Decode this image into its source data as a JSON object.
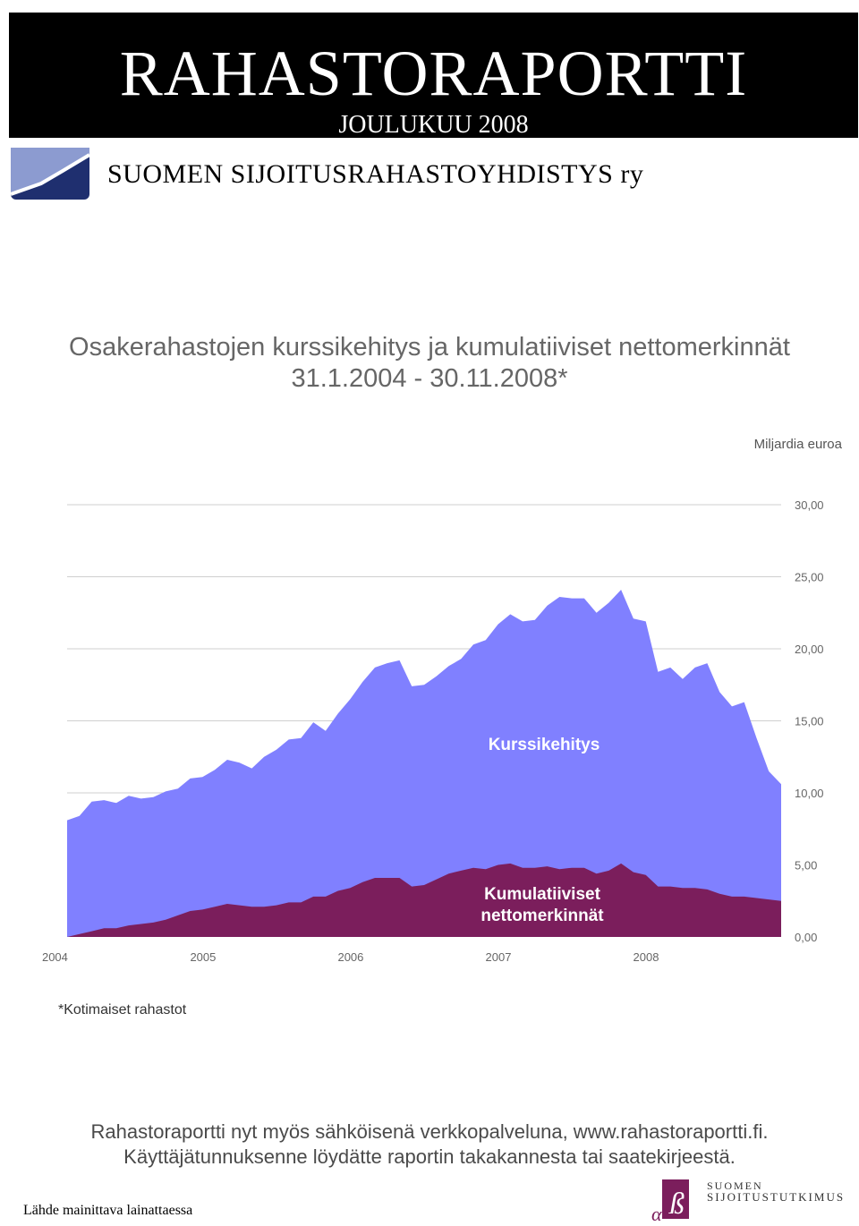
{
  "header": {
    "title": "RAHASTORAPORTTI",
    "subtitle": "JOULUKUU 2008",
    "organization": "SUOMEN SIJOITUSRAHASTOYHDISTYS ry"
  },
  "chart_title": {
    "line1": "Osakerahastojen kurssikehitys ja kumulatiiviset nettomerkinnät",
    "line2": "31.1.2004 - 30.11.2008*"
  },
  "chart_data": {
    "type": "area",
    "unit_label": "Miljardia euroa",
    "x_start": "2004-01-31",
    "x_end": "2008-11-30",
    "x": [
      "2004-01",
      "2004-02",
      "2004-03",
      "2004-04",
      "2004-05",
      "2004-06",
      "2004-07",
      "2004-08",
      "2004-09",
      "2004-10",
      "2004-11",
      "2004-12",
      "2005-01",
      "2005-02",
      "2005-03",
      "2005-04",
      "2005-05",
      "2005-06",
      "2005-07",
      "2005-08",
      "2005-09",
      "2005-10",
      "2005-11",
      "2005-12",
      "2006-01",
      "2006-02",
      "2006-03",
      "2006-04",
      "2006-05",
      "2006-06",
      "2006-07",
      "2006-08",
      "2006-09",
      "2006-10",
      "2006-11",
      "2006-12",
      "2007-01",
      "2007-02",
      "2007-03",
      "2007-04",
      "2007-05",
      "2007-06",
      "2007-07",
      "2007-08",
      "2007-09",
      "2007-10",
      "2007-11",
      "2007-12",
      "2008-01",
      "2008-02",
      "2008-03",
      "2008-04",
      "2008-05",
      "2008-06",
      "2008-07",
      "2008-08",
      "2008-09",
      "2008-10",
      "2008-11"
    ],
    "series": [
      {
        "name": "Kurssikehitys",
        "color": "#8080ff",
        "values": [
          8.1,
          8.4,
          9.4,
          9.5,
          9.3,
          9.8,
          9.6,
          9.7,
          10.1,
          10.3,
          11.0,
          11.1,
          11.6,
          12.3,
          12.1,
          11.7,
          12.5,
          13.0,
          13.7,
          13.8,
          14.9,
          14.3,
          15.5,
          16.5,
          17.7,
          18.7,
          19.0,
          19.2,
          17.4,
          17.5,
          18.1,
          18.8,
          19.3,
          20.3,
          20.6,
          21.7,
          22.4,
          21.9,
          22.0,
          23.0,
          23.6,
          23.5,
          23.5,
          22.5,
          23.2,
          24.1,
          22.1,
          21.9,
          18.4,
          18.7,
          17.9,
          18.7,
          19.0,
          17.0,
          16.0,
          16.3,
          13.8,
          11.5,
          10.6
        ]
      },
      {
        "name": "Kumulatiiviset nettomerkinnät",
        "color": "#7b1e5c",
        "values": [
          0.0,
          0.2,
          0.4,
          0.6,
          0.6,
          0.8,
          0.9,
          1.0,
          1.2,
          1.5,
          1.8,
          1.9,
          2.1,
          2.3,
          2.2,
          2.1,
          2.1,
          2.2,
          2.4,
          2.4,
          2.8,
          2.8,
          3.2,
          3.4,
          3.8,
          4.1,
          4.1,
          4.1,
          3.5,
          3.6,
          4.0,
          4.4,
          4.6,
          4.8,
          4.7,
          5.0,
          5.1,
          4.8,
          4.8,
          4.9,
          4.7,
          4.8,
          4.8,
          4.4,
          4.6,
          5.1,
          4.5,
          4.3,
          3.5,
          3.5,
          3.4,
          3.4,
          3.3,
          3.0,
          2.8,
          2.8,
          2.7,
          2.6,
          2.5
        ]
      }
    ],
    "ylim": [
      0,
      30
    ],
    "y_ticks": [
      "0,00",
      "5,00",
      "10,00",
      "15,00",
      "20,00",
      "25,00",
      "30,00"
    ],
    "x_tick_labels": [
      "2004",
      "2005",
      "2006",
      "2007",
      "2008"
    ],
    "label_kurssi": "Kurssikehitys",
    "label_netto_1": "Kumulatiiviset",
    "label_netto_2": "nettomerkinnät",
    "grid": true,
    "y_axis_side": "right"
  },
  "footnote": "*Kotimaiset rahastot",
  "promo": {
    "line1": "Rahastoraportti nyt myös sähköisenä verkkopalveluna, www.rahastoraportti.fi.",
    "line2": "Käyttäjätunnuksenne löydätte raportin takakannesta tai saatekirjeestä."
  },
  "source_note": "Lähde mainittava lainattaessa",
  "publisher": {
    "line1": "SUOMEN",
    "line2": "SIJOITUSTUTKIMUS"
  }
}
